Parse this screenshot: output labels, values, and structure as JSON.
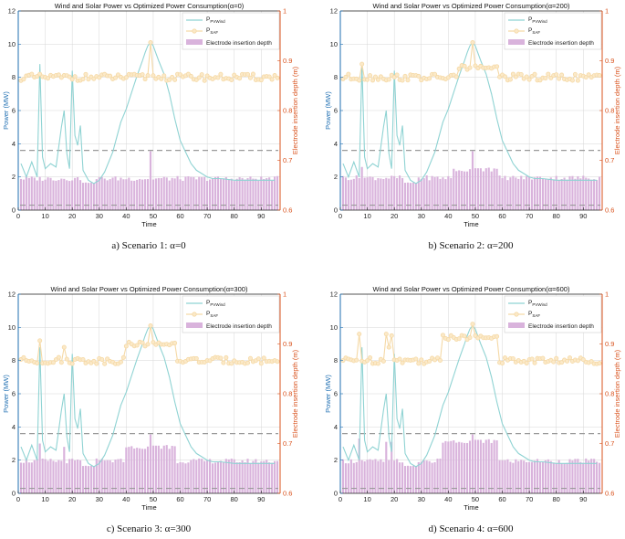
{
  "figure": {
    "captions": [
      "a) Scenario 1: α=0",
      "b) Scenario 2: α=200",
      "c) Scenario 3: α=300",
      "d) Scenario 4: α=600"
    ]
  },
  "colors": {
    "wind": "#8fd3d3",
    "saf": "#f5d9a6",
    "saf_marker_fill": "#fbe9c8",
    "bar": "#d9b3dc",
    "left_axis": "#1f6fb2",
    "right_axis": "#d9531e",
    "dash": "#9a9a9a",
    "grid": "#d7d7d7"
  },
  "chart_data": [
    {
      "type": "line",
      "title": "Wind and Solar Power vs Optimized Power Consumption(α=0)",
      "xlabel": "Time",
      "ylabel": "Power (MW)",
      "ylabel_right": "Electrode insertion depth (m)",
      "xlim": [
        0,
        97
      ],
      "ylim": [
        0,
        12
      ],
      "ylim_right": [
        0.6,
        1.0
      ],
      "xticks": [
        0,
        10,
        20,
        30,
        40,
        50,
        60,
        70,
        80,
        90
      ],
      "yticks": [
        0,
        2,
        4,
        6,
        8,
        10,
        12
      ],
      "yticks_right": [
        "0.6",
        "0.7",
        "0.8",
        "0.9",
        "1"
      ],
      "grid": true,
      "legend_position": "top-right",
      "legend": [
        {
          "main": "P",
          "sub": "PVWind"
        },
        {
          "main": "P",
          "sub": "SAF"
        },
        {
          "main": "Electrode insertion depth",
          "sub": ""
        }
      ],
      "hlines": [
        3.6,
        0.3
      ],
      "wind_x": [
        1,
        3,
        5,
        7,
        8,
        9,
        10,
        12,
        14,
        16,
        17,
        18,
        19,
        20,
        21,
        22,
        23,
        24,
        26,
        28,
        30,
        32,
        35,
        38,
        40,
        42,
        44,
        46,
        47,
        48,
        49,
        50,
        52,
        54,
        56,
        58,
        60,
        62,
        64,
        66,
        68,
        70,
        72,
        75,
        80,
        85,
        90,
        95
      ],
      "wind_y": [
        2.8,
        2.0,
        2.9,
        2.0,
        8.8,
        3.2,
        2.5,
        2.8,
        2.6,
        5.0,
        6.0,
        3.4,
        2.5,
        8.4,
        4.5,
        3.9,
        5.1,
        2.4,
        1.8,
        1.6,
        1.8,
        2.3,
        3.5,
        5.3,
        6.1,
        7.1,
        8.1,
        9.0,
        9.5,
        9.9,
        10.1,
        9.9,
        9.0,
        8.2,
        7.0,
        5.5,
        4.2,
        3.5,
        2.8,
        2.4,
        2.2,
        2.0,
        1.9,
        1.9,
        1.8,
        1.8,
        1.8,
        1.8
      ],
      "saf_series": {
        "base": 8.0,
        "amp": 0.2,
        "spikes": [
          {
            "x": 49,
            "value": 10.1
          }
        ]
      },
      "bars": {
        "base": 1.9,
        "amp": 0.15,
        "low_range": [
          24,
          28
        ],
        "low_value": 1.65,
        "raised_ranges": [],
        "spikes": [
          {
            "x": 49,
            "value": 3.55
          }
        ]
      }
    },
    {
      "type": "line",
      "title": "Wind and Solar Power vs Optimized Power Consumption(α=200)",
      "xlabel": "Time",
      "ylabel": "Power (MW)",
      "ylabel_right": "Electrode insertion depth (m)",
      "xlim": [
        0,
        97
      ],
      "ylim": [
        0,
        12
      ],
      "ylim_right": [
        0.6,
        1.0
      ],
      "xticks": [
        0,
        10,
        20,
        30,
        40,
        50,
        60,
        70,
        80,
        90
      ],
      "yticks": [
        0,
        2,
        4,
        6,
        8,
        10,
        12
      ],
      "yticks_right": [
        "0.6",
        "0.7",
        "0.8",
        "0.9",
        "1"
      ],
      "grid": true,
      "legend_position": "top-right",
      "legend": [
        {
          "main": "P",
          "sub": "PVWind"
        },
        {
          "main": "P",
          "sub": "SAF"
        },
        {
          "main": "Electrode insertion depth",
          "sub": ""
        }
      ],
      "hlines": [
        3.6,
        0.3
      ],
      "wind_x": [
        1,
        3,
        5,
        7,
        8,
        9,
        10,
        12,
        14,
        16,
        17,
        18,
        19,
        20,
        21,
        22,
        23,
        24,
        26,
        28,
        30,
        32,
        35,
        38,
        40,
        42,
        44,
        46,
        47,
        48,
        49,
        50,
        52,
        54,
        56,
        58,
        60,
        62,
        64,
        66,
        68,
        70,
        72,
        75,
        80,
        85,
        90,
        95
      ],
      "wind_y": [
        2.8,
        2.0,
        2.9,
        2.0,
        8.8,
        3.2,
        2.5,
        2.8,
        2.6,
        5.0,
        6.0,
        3.4,
        2.5,
        8.4,
        4.5,
        3.9,
        5.1,
        2.4,
        1.8,
        1.6,
        1.8,
        2.3,
        3.5,
        5.3,
        6.1,
        7.1,
        8.1,
        9.0,
        9.5,
        9.9,
        10.1,
        9.9,
        9.0,
        8.2,
        7.0,
        5.5,
        4.2,
        3.5,
        2.8,
        2.4,
        2.2,
        2.0,
        1.9,
        1.9,
        1.8,
        1.8,
        1.8,
        1.8
      ],
      "saf_series": {
        "base": 8.0,
        "amp": 0.2,
        "spikes": [
          {
            "x": 8,
            "value": 8.8
          },
          {
            "x": 49,
            "value": 10.1
          }
        ],
        "raised_ranges": [
          {
            "from": 44,
            "to": 58,
            "value": 8.6
          }
        ]
      },
      "bars": {
        "base": 1.95,
        "amp": 0.15,
        "low_range": [
          24,
          28
        ],
        "low_value": 1.65,
        "raised_ranges": [
          {
            "from": 42,
            "to": 58,
            "value": 2.45
          }
        ],
        "spikes": [
          {
            "x": 8,
            "value": 2.6
          },
          {
            "x": 49,
            "value": 3.55
          }
        ]
      }
    },
    {
      "type": "line",
      "title": "Wind and Solar Power vs Optimized Power Consumption(α=300)",
      "xlabel": "Time",
      "ylabel": "Power (MW)",
      "ylabel_right": "Electrode insertion depth (m)",
      "xlim": [
        0,
        97
      ],
      "ylim": [
        0,
        12
      ],
      "ylim_right": [
        0.6,
        1.0
      ],
      "xticks": [
        0,
        10,
        20,
        30,
        40,
        50,
        60,
        70,
        80,
        90
      ],
      "yticks": [
        0,
        2,
        4,
        6,
        8,
        10,
        12
      ],
      "yticks_right": [
        "0.6",
        "0.7",
        "0.8",
        "0.9",
        "1"
      ],
      "grid": true,
      "legend_position": "top-right",
      "legend": [
        {
          "main": "P",
          "sub": "PVWind"
        },
        {
          "main": "P",
          "sub": "SAF"
        },
        {
          "main": "Electrode insertion depth",
          "sub": ""
        }
      ],
      "hlines": [
        3.6,
        0.3
      ],
      "wind_x": [
        1,
        3,
        5,
        7,
        8,
        9,
        10,
        12,
        14,
        16,
        17,
        18,
        19,
        20,
        21,
        22,
        23,
        24,
        26,
        28,
        30,
        32,
        35,
        38,
        40,
        42,
        44,
        46,
        47,
        48,
        49,
        50,
        52,
        54,
        56,
        58,
        60,
        62,
        64,
        66,
        68,
        70,
        72,
        75,
        80,
        85,
        90,
        95
      ],
      "wind_y": [
        2.8,
        2.0,
        2.9,
        2.0,
        8.8,
        3.2,
        2.5,
        2.8,
        2.6,
        5.0,
        6.0,
        3.4,
        2.5,
        8.4,
        4.5,
        3.9,
        5.1,
        2.4,
        1.8,
        1.6,
        1.8,
        2.3,
        3.5,
        5.3,
        6.1,
        7.1,
        8.1,
        9.0,
        9.5,
        9.9,
        10.1,
        9.9,
        9.0,
        8.2,
        7.0,
        5.5,
        4.2,
        3.5,
        2.8,
        2.4,
        2.2,
        2.0,
        1.9,
        1.9,
        1.8,
        1.8,
        1.8,
        1.8
      ],
      "saf_series": {
        "base": 8.0,
        "amp": 0.2,
        "spikes": [
          {
            "x": 8,
            "value": 9.2
          },
          {
            "x": 17,
            "value": 8.8
          },
          {
            "x": 49,
            "value": 10.1
          }
        ],
        "raised_ranges": [
          {
            "from": 40,
            "to": 58,
            "value": 9.0
          }
        ]
      },
      "bars": {
        "base": 1.95,
        "amp": 0.15,
        "low_range": [
          24,
          28
        ],
        "low_value": 1.65,
        "raised_ranges": [
          {
            "from": 40,
            "to": 58,
            "value": 2.8
          }
        ],
        "spikes": [
          {
            "x": 8,
            "value": 3.0
          },
          {
            "x": 17,
            "value": 2.8
          },
          {
            "x": 49,
            "value": 3.55
          }
        ]
      }
    },
    {
      "type": "line",
      "title": "Wind and Solar Power vs Optimized Power Consumption(α=600)",
      "xlabel": "Time",
      "ylabel": "Power (MW)",
      "ylabel_right": "Electrode insertion depth (m)",
      "xlim": [
        0,
        97
      ],
      "ylim": [
        0,
        12
      ],
      "ylim_right": [
        0.6,
        1.0
      ],
      "xticks": [
        0,
        10,
        20,
        30,
        40,
        50,
        60,
        70,
        80,
        90
      ],
      "yticks": [
        0,
        2,
        4,
        6,
        8,
        10,
        12
      ],
      "yticks_right": [
        "0.6",
        "0.7",
        "0.8",
        "0.9",
        "1"
      ],
      "grid": true,
      "legend_position": "top-right",
      "legend": [
        {
          "main": "P",
          "sub": "PVWind"
        },
        {
          "main": "P",
          "sub": "SAF"
        },
        {
          "main": "Electrode insertion depth",
          "sub": ""
        }
      ],
      "hlines": [
        3.6,
        0.3
      ],
      "wind_x": [
        1,
        3,
        5,
        7,
        8,
        9,
        10,
        12,
        14,
        16,
        17,
        18,
        19,
        20,
        21,
        22,
        23,
        24,
        26,
        28,
        30,
        32,
        35,
        38,
        40,
        42,
        44,
        46,
        47,
        48,
        49,
        50,
        52,
        54,
        56,
        58,
        60,
        62,
        64,
        66,
        68,
        70,
        72,
        75,
        80,
        85,
        90,
        95
      ],
      "wind_y": [
        2.8,
        2.0,
        2.9,
        2.0,
        8.8,
        3.2,
        2.5,
        2.8,
        2.6,
        5.0,
        6.0,
        3.4,
        2.5,
        8.4,
        4.5,
        3.9,
        5.1,
        2.4,
        1.8,
        1.6,
        1.8,
        2.3,
        3.5,
        5.3,
        6.1,
        7.1,
        8.1,
        9.0,
        9.5,
        9.9,
        10.1,
        9.9,
        9.0,
        8.2,
        7.0,
        5.5,
        4.2,
        3.5,
        2.8,
        2.4,
        2.2,
        2.0,
        1.9,
        1.9,
        1.8,
        1.8,
        1.8,
        1.8
      ],
      "saf_series": {
        "base": 8.0,
        "amp": 0.2,
        "spikes": [
          {
            "x": 7,
            "value": 9.6
          },
          {
            "x": 17,
            "value": 9.6
          },
          {
            "x": 18,
            "value": 8.8
          },
          {
            "x": 19,
            "value": 9.5
          },
          {
            "x": 49,
            "value": 10.2
          }
        ],
        "raised_ranges": [
          {
            "from": 38,
            "to": 58,
            "value": 9.4
          }
        ]
      },
      "bars": {
        "base": 1.95,
        "amp": 0.15,
        "low_range": [
          24,
          28
        ],
        "low_value": 1.65,
        "raised_ranges": [
          {
            "from": 38,
            "to": 58,
            "value": 3.15
          }
        ],
        "spikes": [
          {
            "x": 7,
            "value": 3.3
          },
          {
            "x": 17,
            "value": 3.1
          },
          {
            "x": 19,
            "value": 3.1
          },
          {
            "x": 49,
            "value": 3.55
          }
        ]
      }
    }
  ]
}
